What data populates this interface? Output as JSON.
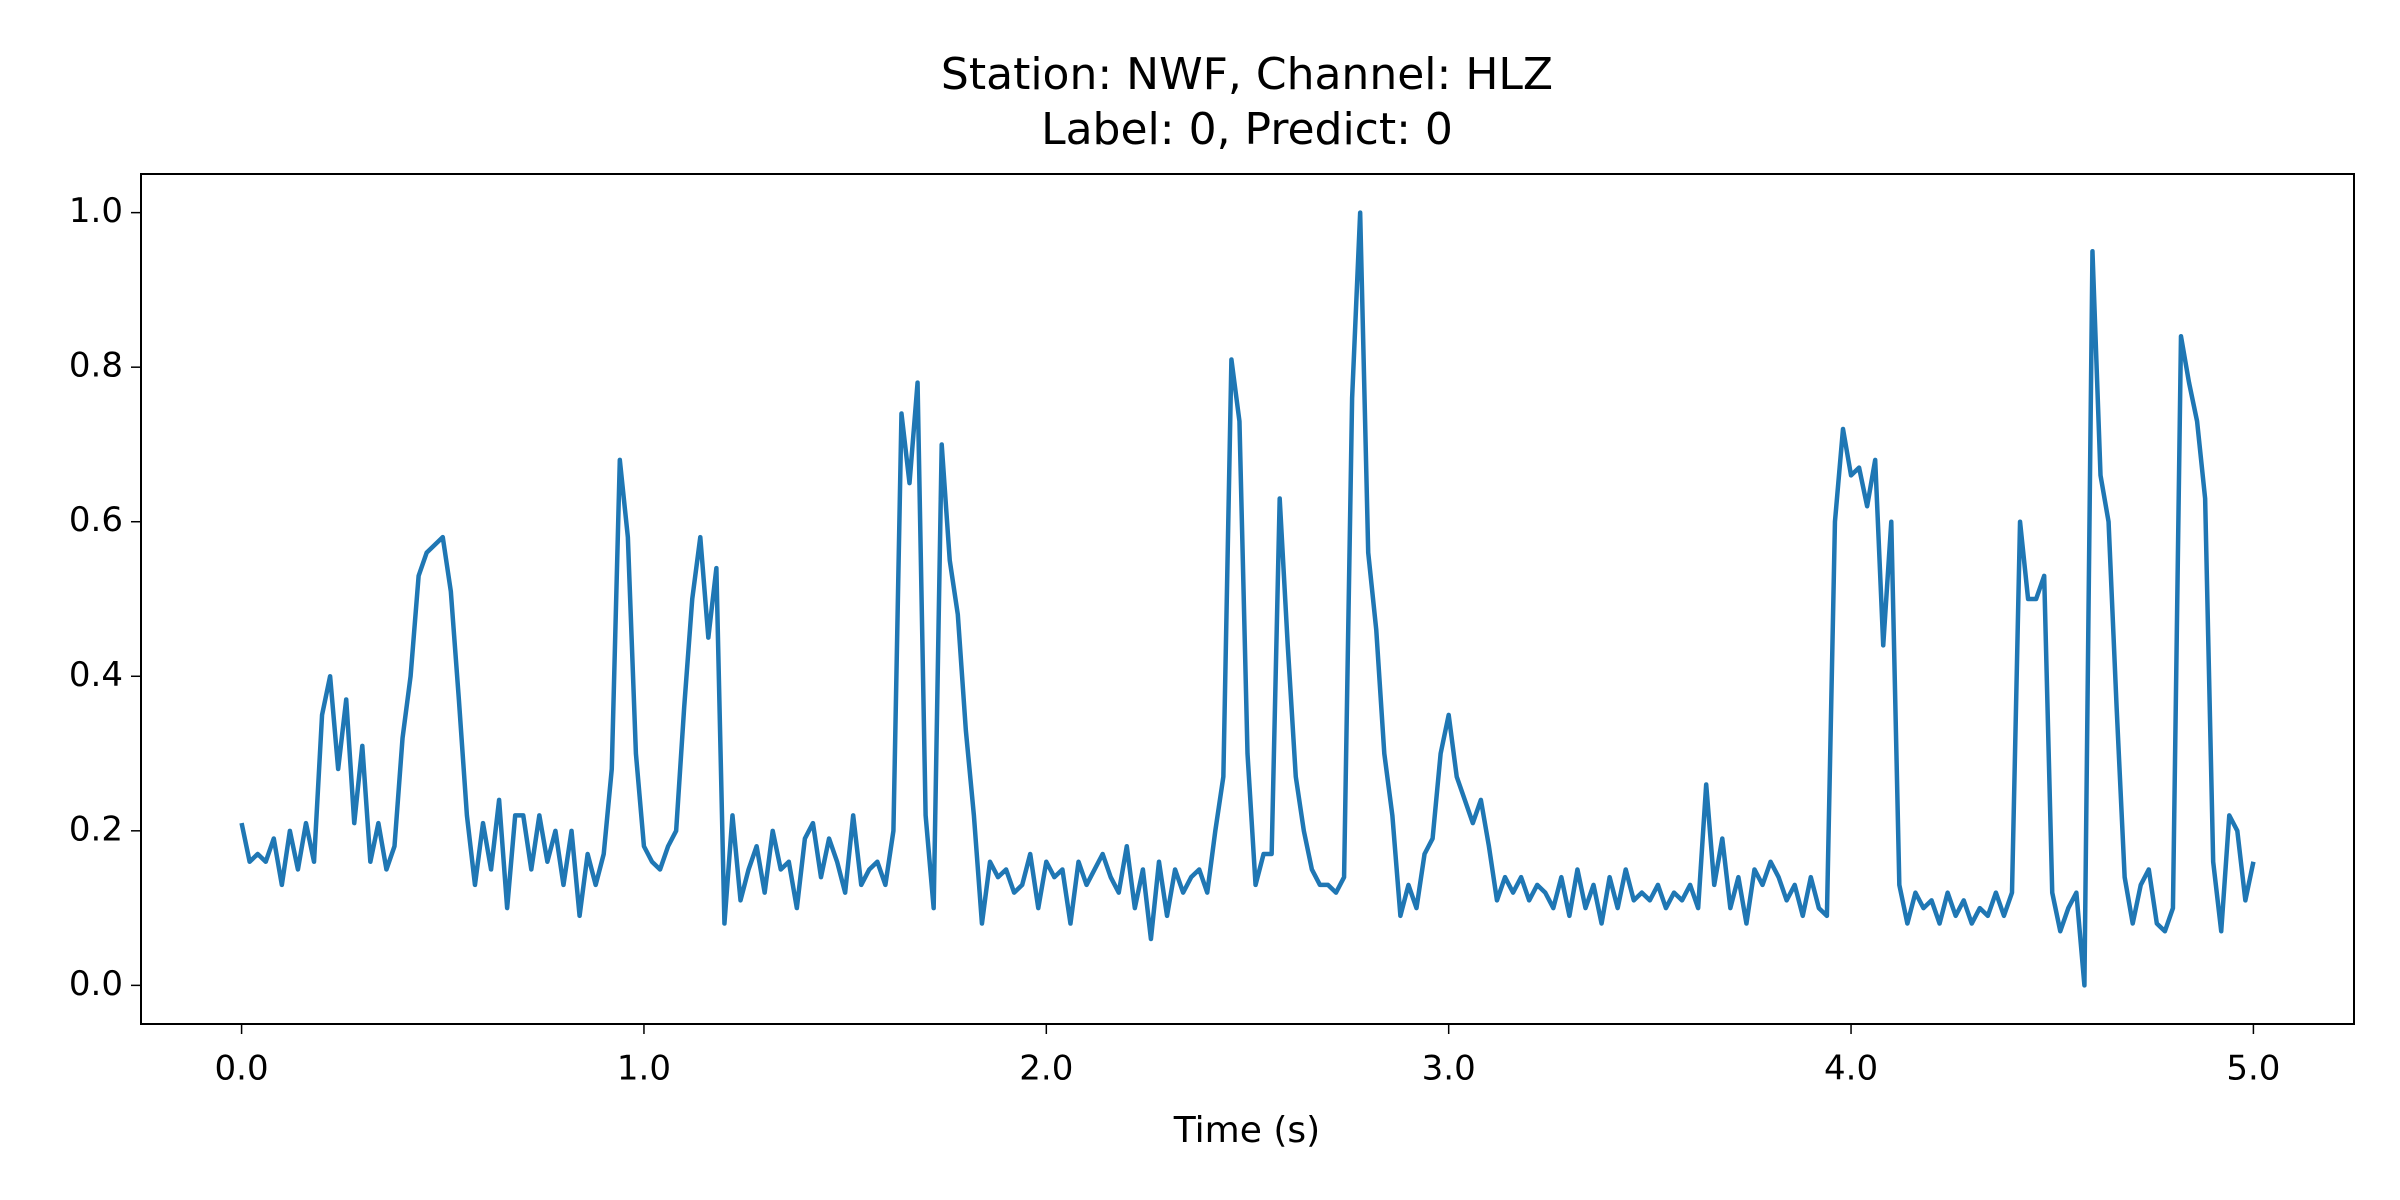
{
  "chart_data": {
    "type": "line",
    "title": [
      "Station: NWF, Channel: HLZ",
      "Label: 0, Predict: 0"
    ],
    "x_label": "Time (s)",
    "xlim": [
      -0.25,
      5.25
    ],
    "ylim": [
      -0.05,
      1.05
    ],
    "xticks": [
      {
        "value": 0,
        "label": "0.0"
      },
      {
        "value": 1,
        "label": "1.0"
      },
      {
        "value": 2,
        "label": "2.0"
      },
      {
        "value": 3,
        "label": "3.0"
      },
      {
        "value": 4,
        "label": "4.0"
      },
      {
        "value": 5,
        "label": "5.0"
      }
    ],
    "yticks": [
      {
        "value": 0,
        "label": "0.0"
      },
      {
        "value": 0.2,
        "label": "0.2"
      },
      {
        "value": 0.4,
        "label": "0.4"
      },
      {
        "value": 0.6,
        "label": "0.6"
      },
      {
        "value": 0.8,
        "label": "0.8"
      },
      {
        "value": 1,
        "label": "1.0"
      }
    ],
    "grid": false,
    "x": [
      0,
      0.02,
      0.04,
      0.06,
      0.08,
      0.1,
      0.12,
      0.14,
      0.16,
      0.18,
      0.2,
      0.22,
      0.24,
      0.26,
      0.28,
      0.3,
      0.32,
      0.34,
      0.36,
      0.38,
      0.4,
      0.42,
      0.44,
      0.46,
      0.48,
      0.5,
      0.52,
      0.54,
      0.56,
      0.58,
      0.6,
      0.62,
      0.64,
      0.66,
      0.68,
      0.7,
      0.72,
      0.74,
      0.76,
      0.78,
      0.8,
      0.82,
      0.84,
      0.86,
      0.88,
      0.9,
      0.92,
      0.94,
      0.96,
      0.98,
      1,
      1.02,
      1.04,
      1.06,
      1.08,
      1.1,
      1.12,
      1.14,
      1.16,
      1.18,
      1.2,
      1.22,
      1.24,
      1.26,
      1.28,
      1.3,
      1.32,
      1.34,
      1.36,
      1.38,
      1.4,
      1.42,
      1.44,
      1.46,
      1.48,
      1.5,
      1.52,
      1.54,
      1.56,
      1.58,
      1.6,
      1.62,
      1.64,
      1.66,
      1.68,
      1.7,
      1.72,
      1.74,
      1.76,
      1.78,
      1.8,
      1.82,
      1.84,
      1.86,
      1.88,
      1.9,
      1.92,
      1.94,
      1.96,
      1.98,
      2,
      2.02,
      2.04,
      2.06,
      2.08,
      2.1,
      2.12,
      2.14,
      2.16,
      2.18,
      2.2,
      2.22,
      2.24,
      2.26,
      2.28,
      2.3,
      2.32,
      2.34,
      2.36,
      2.38,
      2.4,
      2.42,
      2.44,
      2.46,
      2.48,
      2.5,
      2.52,
      2.54,
      2.56,
      2.58,
      2.6,
      2.62,
      2.64,
      2.66,
      2.68,
      2.7,
      2.72,
      2.74,
      2.76,
      2.78,
      2.8,
      2.82,
      2.84,
      2.86,
      2.88,
      2.9,
      2.92,
      2.94,
      2.96,
      2.98,
      3,
      3.02,
      3.04,
      3.06,
      3.08,
      3.1,
      3.12,
      3.14,
      3.16,
      3.18,
      3.2,
      3.22,
      3.24,
      3.26,
      3.28,
      3.3,
      3.32,
      3.34,
      3.36,
      3.38,
      3.4,
      3.42,
      3.44,
      3.46,
      3.48,
      3.5,
      3.52,
      3.54,
      3.56,
      3.58,
      3.6,
      3.62,
      3.64,
      3.66,
      3.68,
      3.7,
      3.72,
      3.74,
      3.76,
      3.78,
      3.8,
      3.82,
      3.84,
      3.86,
      3.88,
      3.9,
      3.92,
      3.94,
      3.96,
      3.98,
      4,
      4.02,
      4.04,
      4.06,
      4.08,
      4.1,
      4.12,
      4.14,
      4.16,
      4.18,
      4.2,
      4.22,
      4.24,
      4.26,
      4.28,
      4.3,
      4.32,
      4.34,
      4.36,
      4.38,
      4.4,
      4.42,
      4.44,
      4.46,
      4.48,
      4.5,
      4.52,
      4.54,
      4.56,
      4.58,
      4.6,
      4.62,
      4.64,
      4.66,
      4.68,
      4.7,
      4.72,
      4.74,
      4.76,
      4.78,
      4.8,
      4.82,
      4.84,
      4.86,
      4.88,
      4.9,
      4.92,
      4.94,
      4.96,
      4.98,
      5
    ],
    "series": [
      {
        "color": "#1f77b4",
        "values": [
          0.21,
          0.16,
          0.17,
          0.16,
          0.19,
          0.13,
          0.2,
          0.15,
          0.21,
          0.16,
          0.35,
          0.4,
          0.28,
          0.37,
          0.21,
          0.31,
          0.16,
          0.21,
          0.15,
          0.18,
          0.32,
          0.4,
          0.53,
          0.56,
          0.57,
          0.58,
          0.51,
          0.37,
          0.22,
          0.13,
          0.21,
          0.15,
          0.24,
          0.1,
          0.22,
          0.22,
          0.15,
          0.22,
          0.16,
          0.2,
          0.13,
          0.2,
          0.09,
          0.17,
          0.13,
          0.17,
          0.28,
          0.68,
          0.58,
          0.3,
          0.18,
          0.16,
          0.15,
          0.18,
          0.2,
          0.36,
          0.5,
          0.58,
          0.45,
          0.54,
          0.08,
          0.22,
          0.11,
          0.15,
          0.18,
          0.12,
          0.2,
          0.15,
          0.16,
          0.1,
          0.19,
          0.21,
          0.14,
          0.19,
          0.16,
          0.12,
          0.22,
          0.13,
          0.15,
          0.16,
          0.13,
          0.2,
          0.74,
          0.65,
          0.78,
          0.22,
          0.1,
          0.7,
          0.55,
          0.48,
          0.33,
          0.22,
          0.08,
          0.16,
          0.14,
          0.15,
          0.12,
          0.13,
          0.17,
          0.1,
          0.16,
          0.14,
          0.15,
          0.08,
          0.16,
          0.13,
          0.15,
          0.17,
          0.14,
          0.12,
          0.18,
          0.1,
          0.15,
          0.06,
          0.16,
          0.09,
          0.15,
          0.12,
          0.14,
          0.15,
          0.12,
          0.2,
          0.27,
          0.81,
          0.73,
          0.3,
          0.13,
          0.17,
          0.17,
          0.63,
          0.44,
          0.27,
          0.2,
          0.15,
          0.13,
          0.13,
          0.12,
          0.14,
          0.76,
          1.0,
          0.56,
          0.46,
          0.3,
          0.22,
          0.09,
          0.13,
          0.1,
          0.17,
          0.19,
          0.3,
          0.35,
          0.27,
          0.24,
          0.21,
          0.24,
          0.18,
          0.11,
          0.14,
          0.12,
          0.14,
          0.11,
          0.13,
          0.12,
          0.1,
          0.14,
          0.09,
          0.15,
          0.1,
          0.13,
          0.08,
          0.14,
          0.1,
          0.15,
          0.11,
          0.12,
          0.11,
          0.13,
          0.1,
          0.12,
          0.11,
          0.13,
          0.1,
          0.26,
          0.13,
          0.19,
          0.1,
          0.14,
          0.08,
          0.15,
          0.13,
          0.16,
          0.14,
          0.11,
          0.13,
          0.09,
          0.14,
          0.1,
          0.09,
          0.6,
          0.72,
          0.66,
          0.67,
          0.62,
          0.68,
          0.44,
          0.6,
          0.13,
          0.08,
          0.12,
          0.1,
          0.11,
          0.08,
          0.12,
          0.09,
          0.11,
          0.08,
          0.1,
          0.09,
          0.12,
          0.09,
          0.12,
          0.6,
          0.5,
          0.5,
          0.53,
          0.12,
          0.07,
          0.1,
          0.12,
          0.0,
          0.95,
          0.66,
          0.6,
          0.36,
          0.14,
          0.08,
          0.13,
          0.15,
          0.08,
          0.07,
          0.1,
          0.84,
          0.78,
          0.73,
          0.63,
          0.16,
          0.07,
          0.22,
          0.2,
          0.11,
          0.16
        ]
      }
    ]
  }
}
